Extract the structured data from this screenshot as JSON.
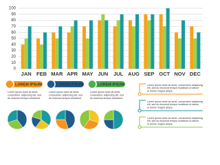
{
  "chart_data": [
    {
      "type": "bar",
      "categories": [
        "JAN",
        "FEB",
        "MAR",
        "APR",
        "MAY",
        "JUN",
        "JUL",
        "AUG",
        "SEP",
        "OCT",
        "NOV",
        "DEC"
      ],
      "series": [
        {
          "color": "#f7a21b",
          "values": [
            40,
            50,
            60,
            60,
            70,
            80,
            70,
            80,
            90,
            90,
            60,
            70
          ]
        },
        {
          "color": "#9fd04a",
          "values": [
            50,
            40,
            50,
            70,
            50,
            90,
            80,
            70,
            80,
            70,
            50,
            50
          ]
        },
        {
          "color": "#1a9aa0",
          "values": [
            70,
            60,
            70,
            80,
            80,
            80,
            90,
            90,
            90,
            100,
            80,
            60
          ]
        }
      ],
      "ylim": [
        0,
        100
      ],
      "yticks": [
        0,
        10,
        20,
        30,
        40,
        50,
        60,
        70,
        80,
        90,
        100
      ],
      "grid": true
    },
    {
      "type": "pie",
      "values": [
        40,
        30,
        30
      ],
      "colors": [
        "#1d5c8c",
        "#8dc63f",
        "#1a9aa0"
      ]
    },
    {
      "type": "pie",
      "values": [
        35,
        25,
        20,
        20
      ],
      "colors": [
        "#1a9aa0",
        "#f3c623",
        "#1d5c8c",
        "#8dc63f"
      ]
    },
    {
      "type": "pie",
      "values": [
        45,
        30,
        25
      ],
      "colors": [
        "#1d5c8c",
        "#f7941d",
        "#1a9aa0"
      ]
    },
    {
      "type": "pie",
      "values": [
        30,
        30,
        40
      ],
      "colors": [
        "#f3c623",
        "#f7941d",
        "#8dc63f"
      ]
    },
    {
      "type": "pie",
      "values": [
        50,
        25,
        25
      ],
      "colors": [
        "#1a9aa0",
        "#1d5c8c",
        "#8dc63f"
      ]
    }
  ],
  "panels": [
    {
      "title": "LOREM IPSUM",
      "color": "#f7941d",
      "lines": [
        "Lorem ipsum dolor sit amet,",
        "consectetur adipiscing elit, sed",
        "do eiusmod tempor incididunt"
      ]
    },
    {
      "title": "LOREM IPSUM",
      "color": "#1d5c8c",
      "lines": [
        "Lorem ipsum dolor sit amet,",
        "consectetur adipiscing elit, sed",
        "do eiusmod tempor incididunt"
      ]
    },
    {
      "title": "LOREM IPSUM",
      "color": "#4caf50",
      "lines": [
        "Lorem ipsum dolor sit amet,",
        "consectetur adipiscing elit, sed",
        "do eiusmod tempor incididunt"
      ]
    }
  ],
  "notes": [
    {
      "color": "#f7941d",
      "lines": [
        "Lorem ipsum dolor sit amet, consectetur adipiscing",
        "elit, sed do eiusmod tempor incididunt ut labore",
        "et dolore magna aliqua."
      ]
    },
    {
      "color": "#1a9aa0",
      "lines": [
        "Lorem ipsum dolor sit amet, consectetur adipiscing",
        "elit, sed do eiusmod tempor incididunt ut labore",
        "et dolore magna aliqua."
      ]
    },
    {
      "color": "#8dc63f",
      "lines": [
        "Lorem ipsum dolor sit amet, consectetur adipiscing",
        "elit, sed do eiusmod tempor incididunt ut labore",
        "et dolore magna aliqua."
      ]
    }
  ]
}
